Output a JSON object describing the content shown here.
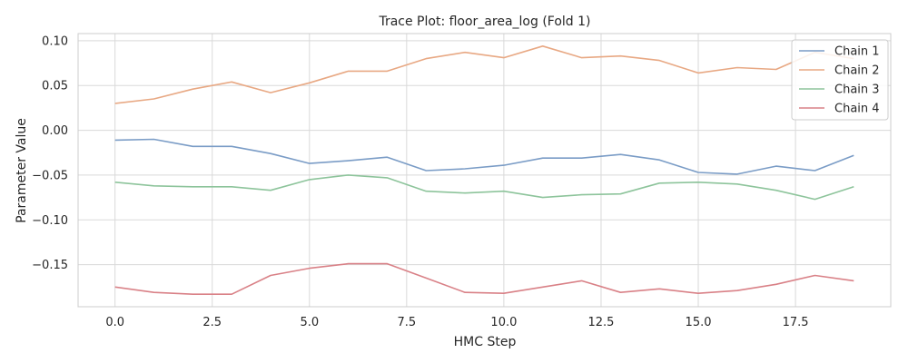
{
  "chart_data": {
    "type": "line",
    "title": "Trace Plot: floor_area_log (Fold 1)",
    "xlabel": "HMC Step",
    "ylabel": "Parameter Value",
    "xlim": [
      -0.95,
      19.95
    ],
    "ylim": [
      -0.197,
      0.108
    ],
    "xticks": [
      0.0,
      2.5,
      5.0,
      7.5,
      10.0,
      12.5,
      15.0,
      17.5
    ],
    "xtick_labels": [
      "0.0",
      "2.5",
      "5.0",
      "7.5",
      "10.0",
      "12.5",
      "15.0",
      "17.5"
    ],
    "yticks": [
      0.1,
      0.05,
      0.0,
      -0.05,
      -0.1,
      -0.15
    ],
    "ytick_labels": [
      "0.10",
      "0.05",
      "0.00",
      "−0.05",
      "−0.10",
      "−0.15"
    ],
    "grid": true,
    "legend_position": "top-right",
    "x": [
      0,
      1,
      2,
      3,
      4,
      5,
      6,
      7,
      8,
      9,
      10,
      11,
      12,
      13,
      14,
      15,
      16,
      17,
      18,
      19
    ],
    "series": [
      {
        "name": "Chain 1",
        "color": "#7a9cc6",
        "values": [
          -0.011,
          -0.01,
          -0.018,
          -0.018,
          -0.026,
          -0.037,
          -0.034,
          -0.03,
          -0.045,
          -0.043,
          -0.039,
          -0.031,
          -0.031,
          -0.027,
          -0.033,
          -0.047,
          -0.049,
          -0.04,
          -0.045,
          -0.028
        ]
      },
      {
        "name": "Chain 2",
        "color": "#e8a883",
        "values": [
          0.03,
          0.035,
          0.046,
          0.054,
          0.042,
          0.053,
          0.066,
          0.066,
          0.08,
          0.087,
          0.081,
          0.094,
          0.081,
          0.083,
          0.078,
          0.064,
          0.07,
          0.068,
          0.087,
          0.08
        ]
      },
      {
        "name": "Chain 3",
        "color": "#8dc49b",
        "values": [
          -0.058,
          -0.062,
          -0.063,
          -0.063,
          -0.067,
          -0.055,
          -0.05,
          -0.053,
          -0.068,
          -0.07,
          -0.068,
          -0.075,
          -0.072,
          -0.071,
          -0.059,
          -0.058,
          -0.06,
          -0.067,
          -0.077,
          -0.063
        ]
      },
      {
        "name": "Chain 4",
        "color": "#d98187",
        "values": [
          -0.175,
          -0.181,
          -0.183,
          -0.183,
          -0.162,
          -0.154,
          -0.149,
          -0.149,
          -0.165,
          -0.181,
          -0.182,
          -0.175,
          -0.168,
          -0.181,
          -0.177,
          -0.182,
          -0.179,
          -0.172,
          -0.162,
          -0.168
        ]
      }
    ]
  }
}
